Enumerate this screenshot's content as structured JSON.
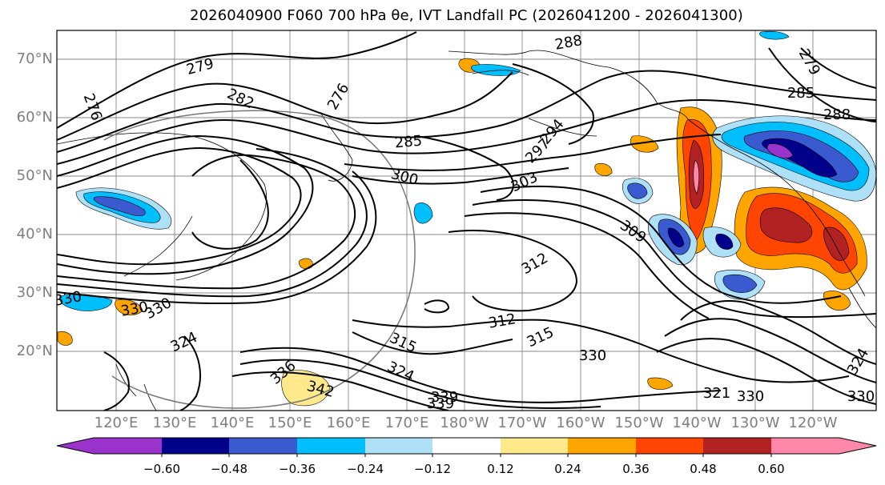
{
  "title": "2026040900 F060 700 hPa θe, IVT Landfall PC (2026041200 - 2026041300)",
  "lat_labels": [
    "70°N",
    "60°N",
    "50°N",
    "40°N",
    "30°N",
    "20°N"
  ],
  "lon_labels": [
    "120°E",
    "130°E",
    "140°E",
    "150°E",
    "160°E",
    "170°E",
    "180°W",
    "170°W",
    "160°W",
    "150°W",
    "140°W",
    "130°W",
    "120°W"
  ],
  "colorbar": {
    "ticks": [
      "−0.60",
      "−0.48",
      "−0.36",
      "−0.24",
      "−0.12",
      "0.12",
      "0.24",
      "0.36",
      "0.48",
      "0.60"
    ],
    "colors": [
      "#9933cc",
      "#00008b",
      "#3a5bd0",
      "#00bfff",
      "#aee0f7",
      "#ffffff",
      "#ffe98a",
      "#ffa500",
      "#ff4500",
      "#b22222",
      "#ff88aa"
    ]
  },
  "contour_labels": [
    "279",
    "276",
    "282",
    "288",
    "285",
    "285",
    "288",
    "294",
    "297",
    "300",
    "303",
    "309",
    "312",
    "312",
    "315",
    "315",
    "324",
    "324",
    "336",
    "342",
    "339",
    "330",
    "321",
    "330",
    "324",
    "330",
    "330",
    "330",
    "339",
    "330",
    "279",
    "276"
  ],
  "pc_colors": {
    "deep_red": "#b22222",
    "red": "#ff4500",
    "orange": "#ffa500",
    "pink": "#ff88aa",
    "purple": "#9933cc",
    "navy": "#00008b",
    "blue": "#3a5bd0",
    "sky": "#00bfff",
    "light_sky": "#aee0f7"
  }
}
